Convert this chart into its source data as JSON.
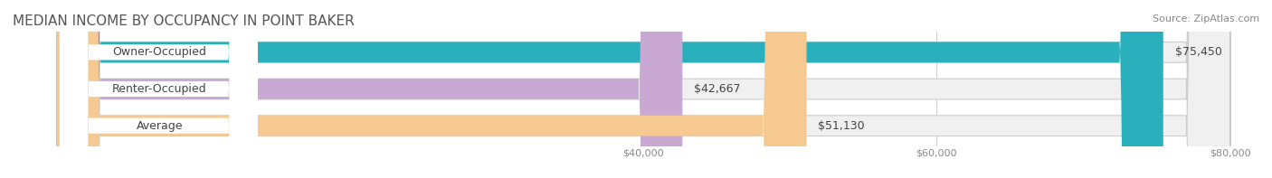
{
  "title": "MEDIAN INCOME BY OCCUPANCY IN POINT BAKER",
  "source": "Source: ZipAtlas.com",
  "categories": [
    "Owner-Occupied",
    "Renter-Occupied",
    "Average"
  ],
  "values": [
    75450,
    42667,
    51130
  ],
  "labels": [
    "$75,450",
    "$42,667",
    "$51,130"
  ],
  "bar_colors": [
    "#2ab0bc",
    "#c9a8d4",
    "#f5c990"
  ],
  "bar_bg_color": "#f0f0f0",
  "xlim": [
    0,
    80000
  ],
  "xticks": [
    40000,
    60000,
    80000
  ],
  "xtick_labels": [
    "$40,000",
    "$60,000",
    "$80,000"
  ],
  "title_fontsize": 11,
  "source_fontsize": 8,
  "label_fontsize": 9,
  "bar_height": 0.55,
  "background_color": "#ffffff"
}
